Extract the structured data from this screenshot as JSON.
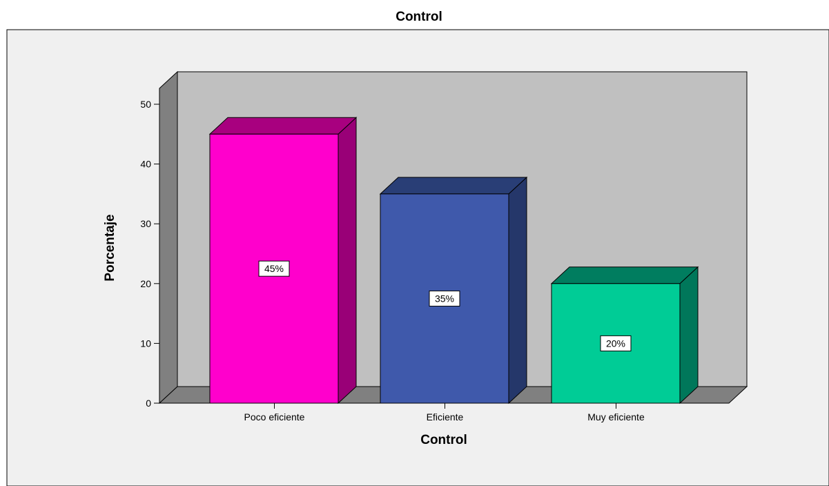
{
  "chart_data": {
    "type": "bar",
    "title": "Control",
    "xlabel": "Control",
    "ylabel": "Porcentaje",
    "categories": [
      "Poco eficiente",
      "Eficiente",
      "Muy eficiente"
    ],
    "values": [
      45,
      35,
      20
    ],
    "data_labels": [
      "45%",
      "35%",
      "20%"
    ],
    "yticks": [
      "0",
      "10",
      "20",
      "30",
      "40",
      "50"
    ],
    "ylim": [
      0,
      55
    ],
    "grid": false,
    "legend": "none",
    "bar_colors": [
      {
        "front": "#ff00cc",
        "side": "#990077",
        "top": "#a8007f"
      },
      {
        "front": "#3f59ab",
        "side": "#25376a",
        "top": "#293e76"
      },
      {
        "front": "#00cc96",
        "side": "#00775a",
        "top": "#007d5f"
      }
    ],
    "colors": {
      "outer_background": "#f0f0f0",
      "plot_back_wall": "#c0c0c0",
      "left_wall": "#808080",
      "floor": "#808080",
      "outline": "#000000"
    }
  }
}
